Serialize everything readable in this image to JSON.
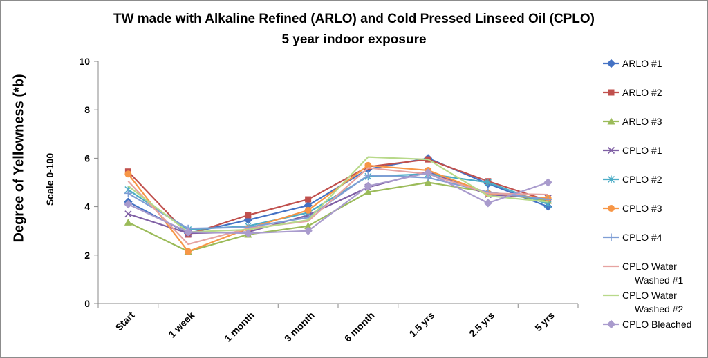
{
  "chart_data": {
    "type": "line",
    "title": "TW made with Alkaline Refined (ARLO) and Cold Pressed Linseed Oil (CPLO)",
    "subtitle": "5 year indoor exposure",
    "ylabel": "Degree   of  Yellowness (*b)",
    "ylabel_secondary": "Scale 0-100",
    "xlabel": "",
    "ylim": [
      0,
      10
    ],
    "yticks": [
      0,
      2,
      4,
      6,
      8,
      10
    ],
    "grid": "none",
    "legend": "right",
    "categories": [
      "Start",
      "1 week",
      "1 month",
      "3 month",
      "6 month",
      "1.5 yrs",
      "2.5 yrs",
      "5 yrs"
    ],
    "series": [
      {
        "name": "ARLO #1",
        "color": "#4472c4",
        "marker": "diamond",
        "values": [
          4.2,
          2.9,
          3.45,
          4.05,
          5.55,
          6.0,
          4.95,
          4.0
        ]
      },
      {
        "name": "ARLO #2",
        "color": "#c0504d",
        "marker": "square",
        "values": [
          5.45,
          2.85,
          3.65,
          4.3,
          5.65,
          5.95,
          5.05,
          4.25
        ]
      },
      {
        "name": "ARLO #3",
        "color": "#9bbb59",
        "marker": "triangle",
        "values": [
          3.35,
          2.15,
          2.85,
          3.2,
          4.6,
          5.0,
          4.6,
          4.25
        ]
      },
      {
        "name": "CPLO #1",
        "color": "#7f5fa4",
        "marker": "x",
        "values": [
          3.7,
          2.9,
          2.95,
          3.65,
          4.8,
          5.45,
          4.5,
          4.35
        ]
      },
      {
        "name": "CPLO #2",
        "color": "#4bacc6",
        "marker": "star",
        "values": [
          4.7,
          3.05,
          3.2,
          3.75,
          5.25,
          5.35,
          5.0,
          4.1
        ]
      },
      {
        "name": "CPLO #3",
        "color": "#f79646",
        "marker": "circle",
        "values": [
          5.35,
          2.15,
          3.1,
          3.85,
          5.7,
          5.5,
          4.55,
          4.35
        ]
      },
      {
        "name": "CPLO #4",
        "color": "#7f9ed5",
        "marker": "plus",
        "values": [
          4.55,
          3.1,
          3.15,
          3.55,
          5.3,
          5.2,
          4.6,
          4.3
        ]
      },
      {
        "name": "CPLO Water Washed #1",
        "color": "#e6a3a1",
        "marker": "none",
        "values": [
          5.05,
          2.45,
          3.1,
          3.4,
          5.6,
          5.35,
          4.55,
          4.5
        ]
      },
      {
        "name": "CPLO Water Washed #2",
        "color": "#b8d98a",
        "marker": "none",
        "values": [
          4.85,
          2.95,
          3.05,
          3.45,
          6.05,
          5.95,
          4.45,
          4.2
        ]
      },
      {
        "name": "CPLO Bleached",
        "color": "#a99bcd",
        "marker": "diamond",
        "values": [
          4.1,
          2.95,
          2.9,
          3.0,
          4.85,
          5.4,
          4.15,
          5.0
        ]
      }
    ]
  }
}
